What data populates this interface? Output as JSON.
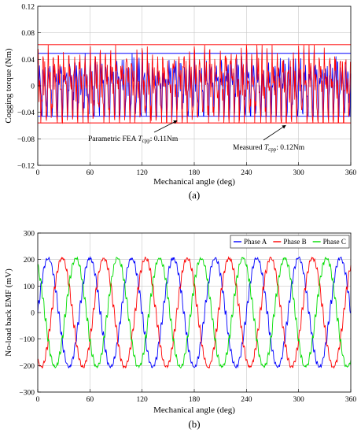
{
  "chart_data": [
    {
      "type": "line",
      "panel_label": "(a)",
      "xlabel": "Mechanical angle (deg)",
      "ylabel": "Cogging torque (Nm)",
      "xlim": [
        0,
        360
      ],
      "ylim": [
        -0.12,
        0.12
      ],
      "xticks": [
        0,
        60,
        120,
        180,
        240,
        300,
        360
      ],
      "yticks": [
        -0.12,
        -0.08,
        -0.04,
        0,
        0.04,
        0.08,
        0.12
      ],
      "ytick_labels": [
        "−0.12",
        "−0.08",
        "−0.04",
        "0",
        "0.04",
        "0.08",
        "0.12"
      ],
      "grid": true,
      "series": [
        {
          "color": "#0000ff",
          "amplitude": 0.05,
          "period_deg": 6,
          "envelope_max": 0.049,
          "envelope_min": -0.046
        },
        {
          "color": "#ff0000",
          "amplitude": 0.062,
          "period_deg": 6,
          "envelope_max": 0.062,
          "envelope_min": -0.056
        }
      ],
      "reference_lines": [
        {
          "color": "#0000ff",
          "y": [
            0.049,
            -0.046
          ]
        },
        {
          "color": "#ff0000",
          "y": [
            0.062,
            -0.056
          ]
        }
      ],
      "annotations": [
        {
          "text_before": "Parametric FEA ",
          "t": "T",
          "sub": "cpp",
          "text_after": ": 0.11Nm",
          "arrow_to_x": 160,
          "arrow_to_y": -0.048
        },
        {
          "text_before": "Measured ",
          "t": "T",
          "sub": "cpp",
          "text_after": ": 0.12Nm",
          "arrow_to_x": 285,
          "arrow_to_y": -0.055
        }
      ]
    },
    {
      "type": "line",
      "panel_label": "(b)",
      "xlabel": "Mechanical angle (deg)",
      "ylabel": "No-load back EMF (mV)",
      "xlim": [
        0,
        360
      ],
      "ylim": [
        -300,
        300
      ],
      "xticks": [
        0,
        60,
        120,
        180,
        240,
        300,
        360
      ],
      "yticks": [
        -300,
        -200,
        -100,
        0,
        100,
        200,
        300
      ],
      "ytick_labels": [
        "−300",
        "−200",
        "−100",
        "0",
        "100",
        "200",
        "300"
      ],
      "grid": true,
      "legend_position": "top-right",
      "series": [
        {
          "name": "Phase A",
          "color": "#0000ff",
          "amplitude": 205,
          "electrical_periods": 7.5,
          "phase_deg": 0,
          "ripple": 14
        },
        {
          "name": "Phase B",
          "color": "#ff0000",
          "amplitude": 205,
          "electrical_periods": 7.5,
          "phase_deg": -120,
          "ripple": 14
        },
        {
          "name": "Phase C",
          "color": "#00dd00",
          "amplitude": 205,
          "electrical_periods": 7.5,
          "phase_deg": 120,
          "ripple": 14
        }
      ]
    }
  ]
}
